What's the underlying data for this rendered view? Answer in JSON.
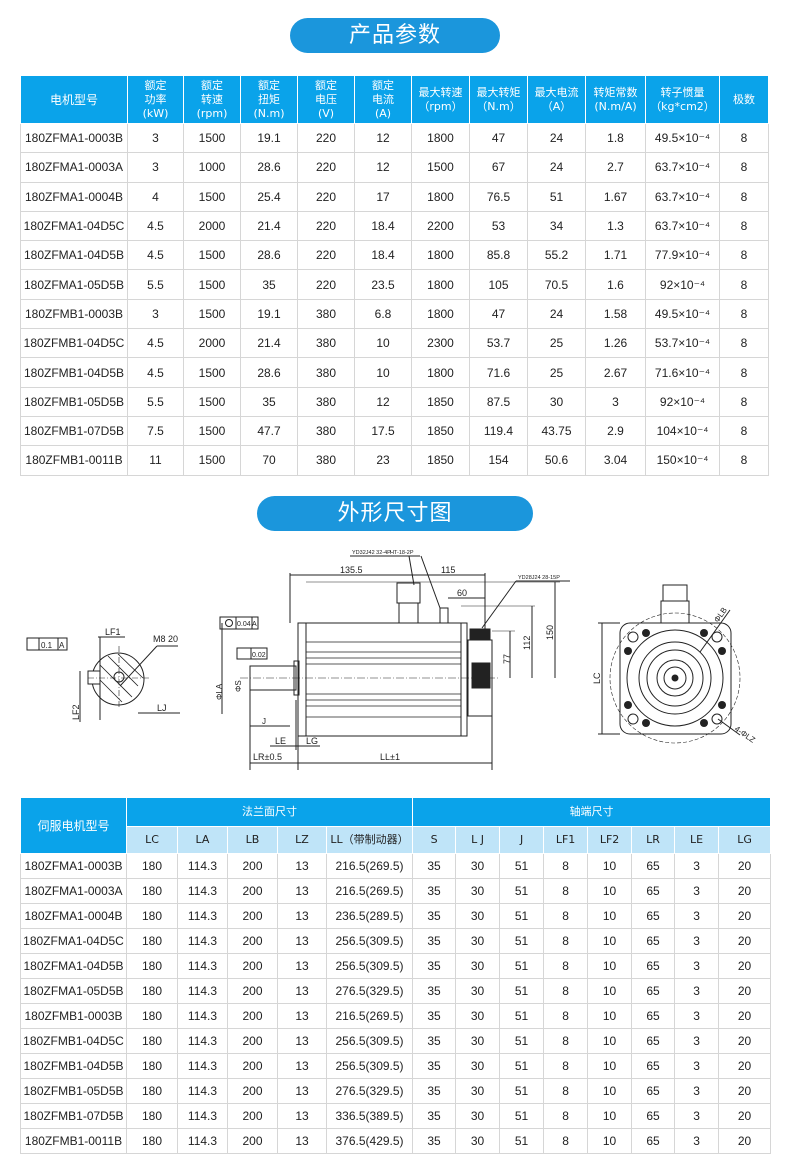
{
  "section1_title": "产品参数",
  "section2_title": "外形尺寸图",
  "params_table": {
    "headers": [
      "电机型号",
      "额定\n功率\n(kW)",
      "额定\n转速\n(rpm)",
      "额定\n扭矩\n(N.m)",
      "额定\n电压\n(V)",
      "额定\n电流\n(A)",
      "最大转速\n（rpm）",
      "最大转矩\n（N.m）",
      "最大电流\n（A）",
      "转矩常数\n(N.m/A)",
      "转子惯量\n（kg*cm2）",
      "极数"
    ],
    "rows": [
      [
        "180ZFMA1-0003B",
        "3",
        "1500",
        "19.1",
        "220",
        "12",
        "1800",
        "47",
        "24",
        "1.8",
        "49.5×10⁻⁴",
        "8"
      ],
      [
        "180ZFMA1-0003A",
        "3",
        "1000",
        "28.6",
        "220",
        "12",
        "1500",
        "67",
        "24",
        "2.7",
        "63.7×10⁻⁴",
        "8"
      ],
      [
        "180ZFMA1-0004B",
        "4",
        "1500",
        "25.4",
        "220",
        "17",
        "1800",
        "76.5",
        "51",
        "1.67",
        "63.7×10⁻⁴",
        "8"
      ],
      [
        "180ZFMA1-04D5C",
        "4.5",
        "2000",
        "21.4",
        "220",
        "18.4",
        "2200",
        "53",
        "34",
        "1.3",
        "63.7×10⁻⁴",
        "8"
      ],
      [
        "180ZFMA1-04D5B",
        "4.5",
        "1500",
        "28.6",
        "220",
        "18.4",
        "1800",
        "85.8",
        "55.2",
        "1.71",
        "77.9×10⁻⁴",
        "8"
      ],
      [
        "180ZFMA1-05D5B",
        "5.5",
        "1500",
        "35",
        "220",
        "23.5",
        "1800",
        "105",
        "70.5",
        "1.6",
        "92×10⁻⁴",
        "8"
      ],
      [
        "180ZFMB1-0003B",
        "3",
        "1500",
        "19.1",
        "380",
        "6.8",
        "1800",
        "47",
        "24",
        "1.58",
        "49.5×10⁻⁴",
        "8"
      ],
      [
        "180ZFMB1-04D5C",
        "4.5",
        "2000",
        "21.4",
        "380",
        "10",
        "2300",
        "53.7",
        "25",
        "1.26",
        "53.7×10⁻⁴",
        "8"
      ],
      [
        "180ZFMB1-04D5B",
        "4.5",
        "1500",
        "28.6",
        "380",
        "10",
        "1800",
        "71.6",
        "25",
        "2.67",
        "71.6×10⁻⁴",
        "8"
      ],
      [
        "180ZFMB1-05D5B",
        "5.5",
        "1500",
        "35",
        "380",
        "12",
        "1850",
        "87.5",
        "30",
        "3",
        "92×10⁻⁴",
        "8"
      ],
      [
        "180ZFMB1-07D5B",
        "7.5",
        "1500",
        "47.7",
        "380",
        "17.5",
        "1850",
        "119.4",
        "43.75",
        "2.9",
        "104×10⁻⁴",
        "8"
      ],
      [
        "180ZFMB1-0011B",
        "11",
        "1500",
        "70",
        "380",
        "23",
        "1850",
        "154",
        "50.6",
        "3.04",
        "150×10⁻⁴",
        "8"
      ]
    ]
  },
  "drawing": {
    "tol_flat": "0.1",
    "datum": "A",
    "lf1": "LF1",
    "thread": "M8 20",
    "lf2": "LF2",
    "lj": "LJ",
    "coax": "0.04",
    "runout": "0.02",
    "la": "ΦLA",
    "s": "ΦS",
    "j": "J",
    "le": "LE",
    "lg": "LG",
    "lr": "LR±0.5",
    "ll": "LL±1",
    "conn1": "YD32J42 32-4P",
    "conn2": "HT-18-2P",
    "conn3": "YD28J24 28-15P",
    "d135": "135.5",
    "d115": "115",
    "d60": "60",
    "d150": "150",
    "d112": "112",
    "d77": "77",
    "lc": "LC",
    "lb": "ΦLB",
    "lz": "4-ΦLZ"
  },
  "dims_table": {
    "model_header": "伺服电机型号",
    "group1": "法兰面尺寸",
    "group2": "轴端尺寸",
    "sub_headers": [
      "LC",
      "LA",
      "LB",
      "LZ",
      "LL（带制动器）",
      "S",
      "L J",
      "J",
      "LF1",
      "LF2",
      "LR",
      "LE",
      "LG"
    ],
    "rows": [
      [
        "180ZFMA1-0003B",
        "180",
        "114.3",
        "200",
        "13",
        "216.5(269.5)",
        "35",
        "30",
        "51",
        "8",
        "10",
        "65",
        "3",
        "20"
      ],
      [
        "180ZFMA1-0003A",
        "180",
        "114.3",
        "200",
        "13",
        "216.5(269.5)",
        "35",
        "30",
        "51",
        "8",
        "10",
        "65",
        "3",
        "20"
      ],
      [
        "180ZFMA1-0004B",
        "180",
        "114.3",
        "200",
        "13",
        "236.5(289.5)",
        "35",
        "30",
        "51",
        "8",
        "10",
        "65",
        "3",
        "20"
      ],
      [
        "180ZFMA1-04D5C",
        "180",
        "114.3",
        "200",
        "13",
        "256.5(309.5)",
        "35",
        "30",
        "51",
        "8",
        "10",
        "65",
        "3",
        "20"
      ],
      [
        "180ZFMA1-04D5B",
        "180",
        "114.3",
        "200",
        "13",
        "256.5(309.5)",
        "35",
        "30",
        "51",
        "8",
        "10",
        "65",
        "3",
        "20"
      ],
      [
        "180ZFMA1-05D5B",
        "180",
        "114.3",
        "200",
        "13",
        "276.5(329.5)",
        "35",
        "30",
        "51",
        "8",
        "10",
        "65",
        "3",
        "20"
      ],
      [
        "180ZFMB1-0003B",
        "180",
        "114.3",
        "200",
        "13",
        "216.5(269.5)",
        "35",
        "30",
        "51",
        "8",
        "10",
        "65",
        "3",
        "20"
      ],
      [
        "180ZFMB1-04D5C",
        "180",
        "114.3",
        "200",
        "13",
        "256.5(309.5)",
        "35",
        "30",
        "51",
        "8",
        "10",
        "65",
        "3",
        "20"
      ],
      [
        "180ZFMB1-04D5B",
        "180",
        "114.3",
        "200",
        "13",
        "256.5(309.5)",
        "35",
        "30",
        "51",
        "8",
        "10",
        "65",
        "3",
        "20"
      ],
      [
        "180ZFMB1-05D5B",
        "180",
        "114.3",
        "200",
        "13",
        "276.5(329.5)",
        "35",
        "30",
        "51",
        "8",
        "10",
        "65",
        "3",
        "20"
      ],
      [
        "180ZFMB1-07D5B",
        "180",
        "114.3",
        "200",
        "13",
        "336.5(389.5)",
        "35",
        "30",
        "51",
        "8",
        "10",
        "65",
        "3",
        "20"
      ],
      [
        "180ZFMB1-0011B",
        "180",
        "114.3",
        "200",
        "13",
        "376.5(429.5)",
        "35",
        "30",
        "51",
        "8",
        "10",
        "65",
        "3",
        "20"
      ]
    ]
  },
  "colors": {
    "accent": "#0aa3ea",
    "pill": "#1b96dc",
    "subheader": "#bfe4f8"
  }
}
